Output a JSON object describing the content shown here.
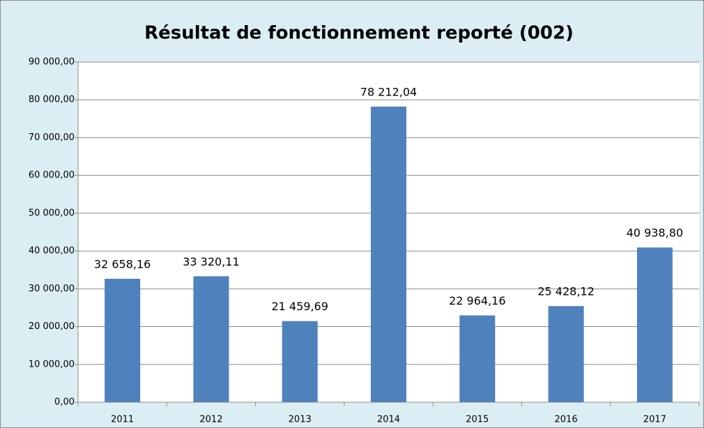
{
  "chart_data": {
    "type": "bar",
    "title": "Résultat de fonctionnement reporté (002)",
    "categories": [
      "2011",
      "2012",
      "2013",
      "2014",
      "2015",
      "2016",
      "2017"
    ],
    "values": [
      32658.16,
      33320.11,
      21459.69,
      78212.04,
      22964.16,
      25428.12,
      40938.8
    ],
    "value_labels": [
      "32 658,16",
      "33 320,11",
      "21 459,69",
      "78 212,04",
      "22 964,16",
      "25 428,12",
      "40 938,80"
    ],
    "color": "#4f81bd",
    "ylim": [
      0,
      90000
    ],
    "yticks": [
      {
        "value": 0,
        "label": "0,00"
      },
      {
        "value": 10000,
        "label": "10 000,00"
      },
      {
        "value": 20000,
        "label": "20 000,00"
      },
      {
        "value": 30000,
        "label": "30 000,00"
      },
      {
        "value": 40000,
        "label": "40 000,00"
      },
      {
        "value": 50000,
        "label": "50 000,00"
      },
      {
        "value": 60000,
        "label": "60 000,00"
      },
      {
        "value": 70000,
        "label": "70 000,00"
      },
      {
        "value": 80000,
        "label": "80 000,00"
      },
      {
        "value": 90000,
        "label": "90 000,00"
      }
    ],
    "grid": true
  }
}
